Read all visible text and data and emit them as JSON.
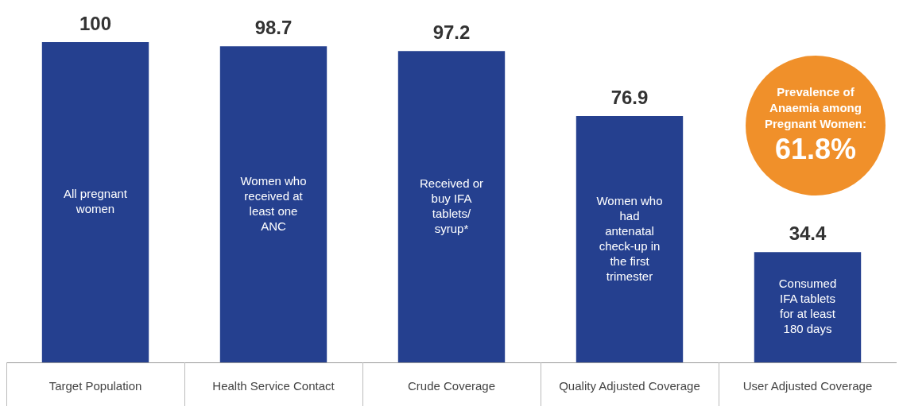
{
  "chart_data": {
    "type": "bar",
    "categories": [
      "Target Population",
      "Health Service Contact",
      "Crude Coverage",
      "Quality Adjusted Coverage",
      "User Adjusted Coverage"
    ],
    "values": [
      100,
      98.7,
      97.2,
      76.9,
      34.4
    ],
    "color": "#25408f",
    "data_labels": true,
    "annotations": [
      "All pregnant women",
      "Women who received at least one ANC",
      "Received or buy IFA tablets/ syrup*",
      "Women who had antenatal check-up in the first trimester",
      "Consumed IFA tablets for at least 180 days",
      "Prevalence of Anaemia among Pregnant Women:",
      "61.8%"
    ]
  }
}
